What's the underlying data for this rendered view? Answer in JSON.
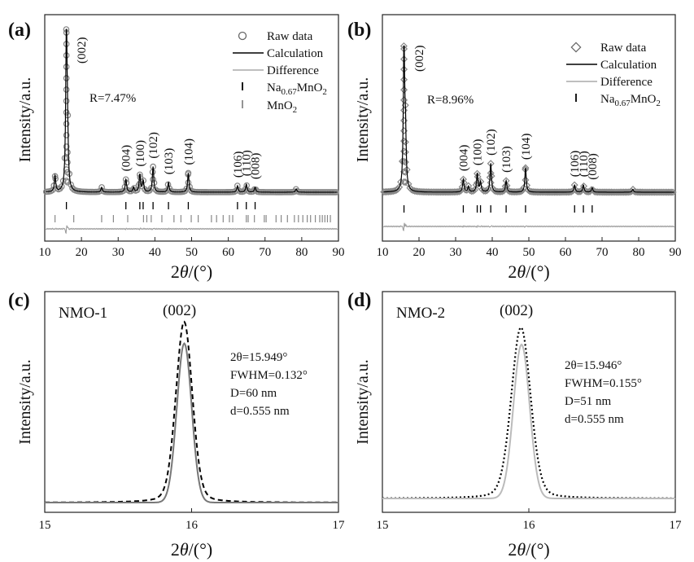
{
  "figure": {
    "x_axis_label_prefix": "2",
    "x_axis_label_theta": "θ",
    "x_axis_label_suffix": "/(°)"
  },
  "chart_data": [
    {
      "type": "line",
      "panel": "(a)",
      "ylabel": "Intensity/a.u.",
      "xlim": [
        10,
        90
      ],
      "xticks": [
        10,
        20,
        30,
        40,
        50,
        60,
        70,
        80,
        90
      ],
      "r_factor": "R=7.47%",
      "legend": {
        "raw": "Raw data",
        "calc": "Calculation",
        "diff": "Difference",
        "phase1_base": "Na",
        "phase1_sub": "0.67",
        "phase1_rest": "MnO",
        "phase1_sub2": "2",
        "phase2_base": "MnO",
        "phase2_sub": "2"
      },
      "peaks": [
        {
          "x": 12.8,
          "h": 0.1
        },
        {
          "x": 15.9,
          "h": 1.0
        },
        {
          "x": 16.2,
          "h": 0.25
        },
        {
          "x": 25.5,
          "h": 0.03
        },
        {
          "x": 32.1,
          "h": 0.08
        },
        {
          "x": 34.2,
          "h": 0.03
        },
        {
          "x": 35.9,
          "h": 0.11
        },
        {
          "x": 36.8,
          "h": 0.07
        },
        {
          "x": 39.5,
          "h": 0.16
        },
        {
          "x": 43.7,
          "h": 0.06
        },
        {
          "x": 49.1,
          "h": 0.12
        },
        {
          "x": 62.5,
          "h": 0.04
        },
        {
          "x": 64.9,
          "h": 0.05
        },
        {
          "x": 67.3,
          "h": 0.03
        },
        {
          "x": 78.5,
          "h": 0.02
        }
      ],
      "miller_labels": [
        {
          "text": "(002)",
          "x": 16.0
        },
        {
          "text": "(004)",
          "x": 32.1
        },
        {
          "text": "(100)",
          "x": 35.9
        },
        {
          "text": "(102)",
          "x": 39.5
        },
        {
          "text": "(103)",
          "x": 43.7
        },
        {
          "text": "(104)",
          "x": 49.1
        },
        {
          "text": "(106)",
          "x": 62.5
        },
        {
          "text": "(110)",
          "x": 64.9
        },
        {
          "text": "(008)",
          "x": 67.3
        }
      ],
      "bragg_phase1": [
        15.9,
        32.1,
        35.9,
        36.8,
        39.5,
        43.7,
        49.1,
        62.5,
        64.9,
        67.3
      ],
      "bragg_phase2": [
        12.8,
        17.9,
        25.5,
        28.7,
        32.6,
        36.9,
        37.8,
        39.0,
        41.9,
        45.2,
        47.1,
        49.9,
        51.8,
        55.4,
        56.8,
        58.6,
        60.3,
        61.2,
        64.9,
        65.4,
        67.1,
        69.8,
        70.3,
        73.0,
        74.4,
        76.1,
        78.0,
        79.1,
        80.3,
        81.5,
        82.4,
        83.7,
        84.9,
        85.6,
        86.3,
        87.0,
        87.8
      ]
    },
    {
      "type": "line",
      "panel": "(b)",
      "ylabel": "Intensity/a.u.",
      "xlim": [
        10,
        90
      ],
      "xticks": [
        10,
        20,
        30,
        40,
        50,
        60,
        70,
        80,
        90
      ],
      "r_factor": "R=8.96%",
      "legend": {
        "raw": "Raw data",
        "calc": "Calculation",
        "diff": "Difference",
        "phase1_base": "Na",
        "phase1_sub": "0.67",
        "phase1_rest": "MnO",
        "phase1_sub2": "2"
      },
      "peaks": [
        {
          "x": 15.9,
          "h": 1.0
        },
        {
          "x": 16.3,
          "h": 0.35
        },
        {
          "x": 32.1,
          "h": 0.09
        },
        {
          "x": 33.5,
          "h": 0.04
        },
        {
          "x": 35.9,
          "h": 0.13
        },
        {
          "x": 36.8,
          "h": 0.07
        },
        {
          "x": 39.6,
          "h": 0.2
        },
        {
          "x": 43.8,
          "h": 0.08
        },
        {
          "x": 49.1,
          "h": 0.17
        },
        {
          "x": 62.5,
          "h": 0.05
        },
        {
          "x": 64.9,
          "h": 0.05
        },
        {
          "x": 67.3,
          "h": 0.03
        },
        {
          "x": 78.4,
          "h": 0.02
        }
      ],
      "miller_labels": [
        {
          "text": "(002)",
          "x": 16.0
        },
        {
          "text": "(004)",
          "x": 32.1
        },
        {
          "text": "(100)",
          "x": 35.9
        },
        {
          "text": "(102)",
          "x": 39.6
        },
        {
          "text": "(103)",
          "x": 43.8
        },
        {
          "text": "(104)",
          "x": 49.1
        },
        {
          "text": "(106)",
          "x": 62.5
        },
        {
          "text": "(110)",
          "x": 64.9
        },
        {
          "text": "(008)",
          "x": 67.3
        }
      ],
      "bragg_phase1": [
        15.9,
        32.1,
        35.9,
        36.8,
        39.6,
        43.8,
        49.1,
        62.5,
        64.9,
        67.3
      ]
    },
    {
      "type": "line",
      "panel": "(c)",
      "sample": "NMO-1",
      "peak_label": "(002)",
      "ylabel": "Intensity/a.u.",
      "xlim": [
        15,
        17
      ],
      "xticks": [
        15,
        16,
        17
      ],
      "fit_lines": [
        "2θ=15.949°",
        "FWHM=0.132°",
        "D=60 nm",
        "d=0.555 nm"
      ],
      "series": [
        {
          "name": "measured (dashed)",
          "center": 15.949,
          "fwhm": 0.132,
          "peak": 1.0,
          "style": "dashed"
        },
        {
          "name": "fitted (solid gray)",
          "center": 15.95,
          "fwhm": 0.118,
          "peak": 0.88,
          "style": "solid"
        }
      ]
    },
    {
      "type": "line",
      "panel": "(d)",
      "sample": "NMO-2",
      "peak_label": "(002)",
      "ylabel": "Intensity/a.u.",
      "xlim": [
        15,
        17
      ],
      "xticks": [
        15,
        16,
        17
      ],
      "fit_lines": [
        "2θ=15.946°",
        "FWHM=0.155°",
        "D=51 nm",
        "d=0.555 nm"
      ],
      "series": [
        {
          "name": "measured (dotted)",
          "center": 15.946,
          "fwhm": 0.155,
          "peak": 1.0,
          "style": "dotted"
        },
        {
          "name": "fitted (solid light gray)",
          "center": 15.95,
          "fwhm": 0.13,
          "peak": 0.9,
          "style": "solid"
        }
      ]
    }
  ]
}
